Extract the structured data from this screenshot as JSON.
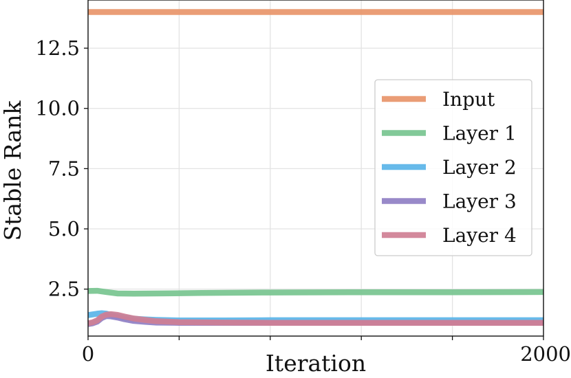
{
  "chart_data": {
    "type": "line",
    "xlabel": "Iteration",
    "ylabel": "Stable Rank",
    "xlim": [
      0,
      2000
    ],
    "ylim": [
      0.55,
      14.5
    ],
    "grid": true,
    "legend_position": "right",
    "x_ticks": [
      0,
      400,
      800,
      1200,
      1600,
      2000
    ],
    "x_tick_labels": [
      "0",
      "",
      "",
      "",
      "",
      "2000"
    ],
    "y_ticks": [
      2.5,
      5.0,
      7.5,
      10.0,
      12.5
    ],
    "y_tick_labels": [
      "2.5",
      "5.0",
      "7.5",
      "10.0",
      "12.5"
    ],
    "series": [
      {
        "name": "Input",
        "color": "#e8956a",
        "x": [
          0,
          2000
        ],
        "y": [
          14.0,
          14.0
        ]
      },
      {
        "name": "Layer 1",
        "color": "#77c48f",
        "x": [
          0,
          40,
          80,
          130,
          200,
          300,
          500,
          800,
          1200,
          1600,
          2000
        ],
        "y": [
          2.42,
          2.43,
          2.38,
          2.32,
          2.31,
          2.32,
          2.34,
          2.36,
          2.37,
          2.37,
          2.38
        ]
      },
      {
        "name": "Layer 2",
        "color": "#5ab4e8",
        "x": [
          0,
          20,
          40,
          60,
          80,
          100,
          130,
          160,
          200,
          250,
          300,
          400,
          600,
          800,
          1200,
          1600,
          2000
        ],
        "y": [
          1.42,
          1.45,
          1.48,
          1.5,
          1.48,
          1.43,
          1.38,
          1.32,
          1.27,
          1.24,
          1.22,
          1.2,
          1.2,
          1.21,
          1.21,
          1.21,
          1.21
        ]
      },
      {
        "name": "Layer 3",
        "color": "#8f7fc4",
        "x": [
          0,
          20,
          40,
          60,
          80,
          100,
          130,
          160,
          200,
          250,
          300,
          400,
          600,
          800,
          1200,
          1600,
          2000
        ],
        "y": [
          1.05,
          1.08,
          1.15,
          1.3,
          1.38,
          1.37,
          1.32,
          1.25,
          1.18,
          1.14,
          1.11,
          1.1,
          1.1,
          1.1,
          1.1,
          1.1,
          1.1
        ]
      },
      {
        "name": "Layer 4",
        "color": "#cf7f94",
        "x": [
          0,
          20,
          40,
          60,
          80,
          100,
          130,
          160,
          200,
          250,
          300,
          400,
          600,
          800,
          1200,
          1600,
          2000
        ],
        "y": [
          1.08,
          1.12,
          1.2,
          1.36,
          1.44,
          1.46,
          1.43,
          1.36,
          1.28,
          1.22,
          1.17,
          1.13,
          1.11,
          1.1,
          1.1,
          1.1,
          1.1
        ]
      }
    ]
  }
}
